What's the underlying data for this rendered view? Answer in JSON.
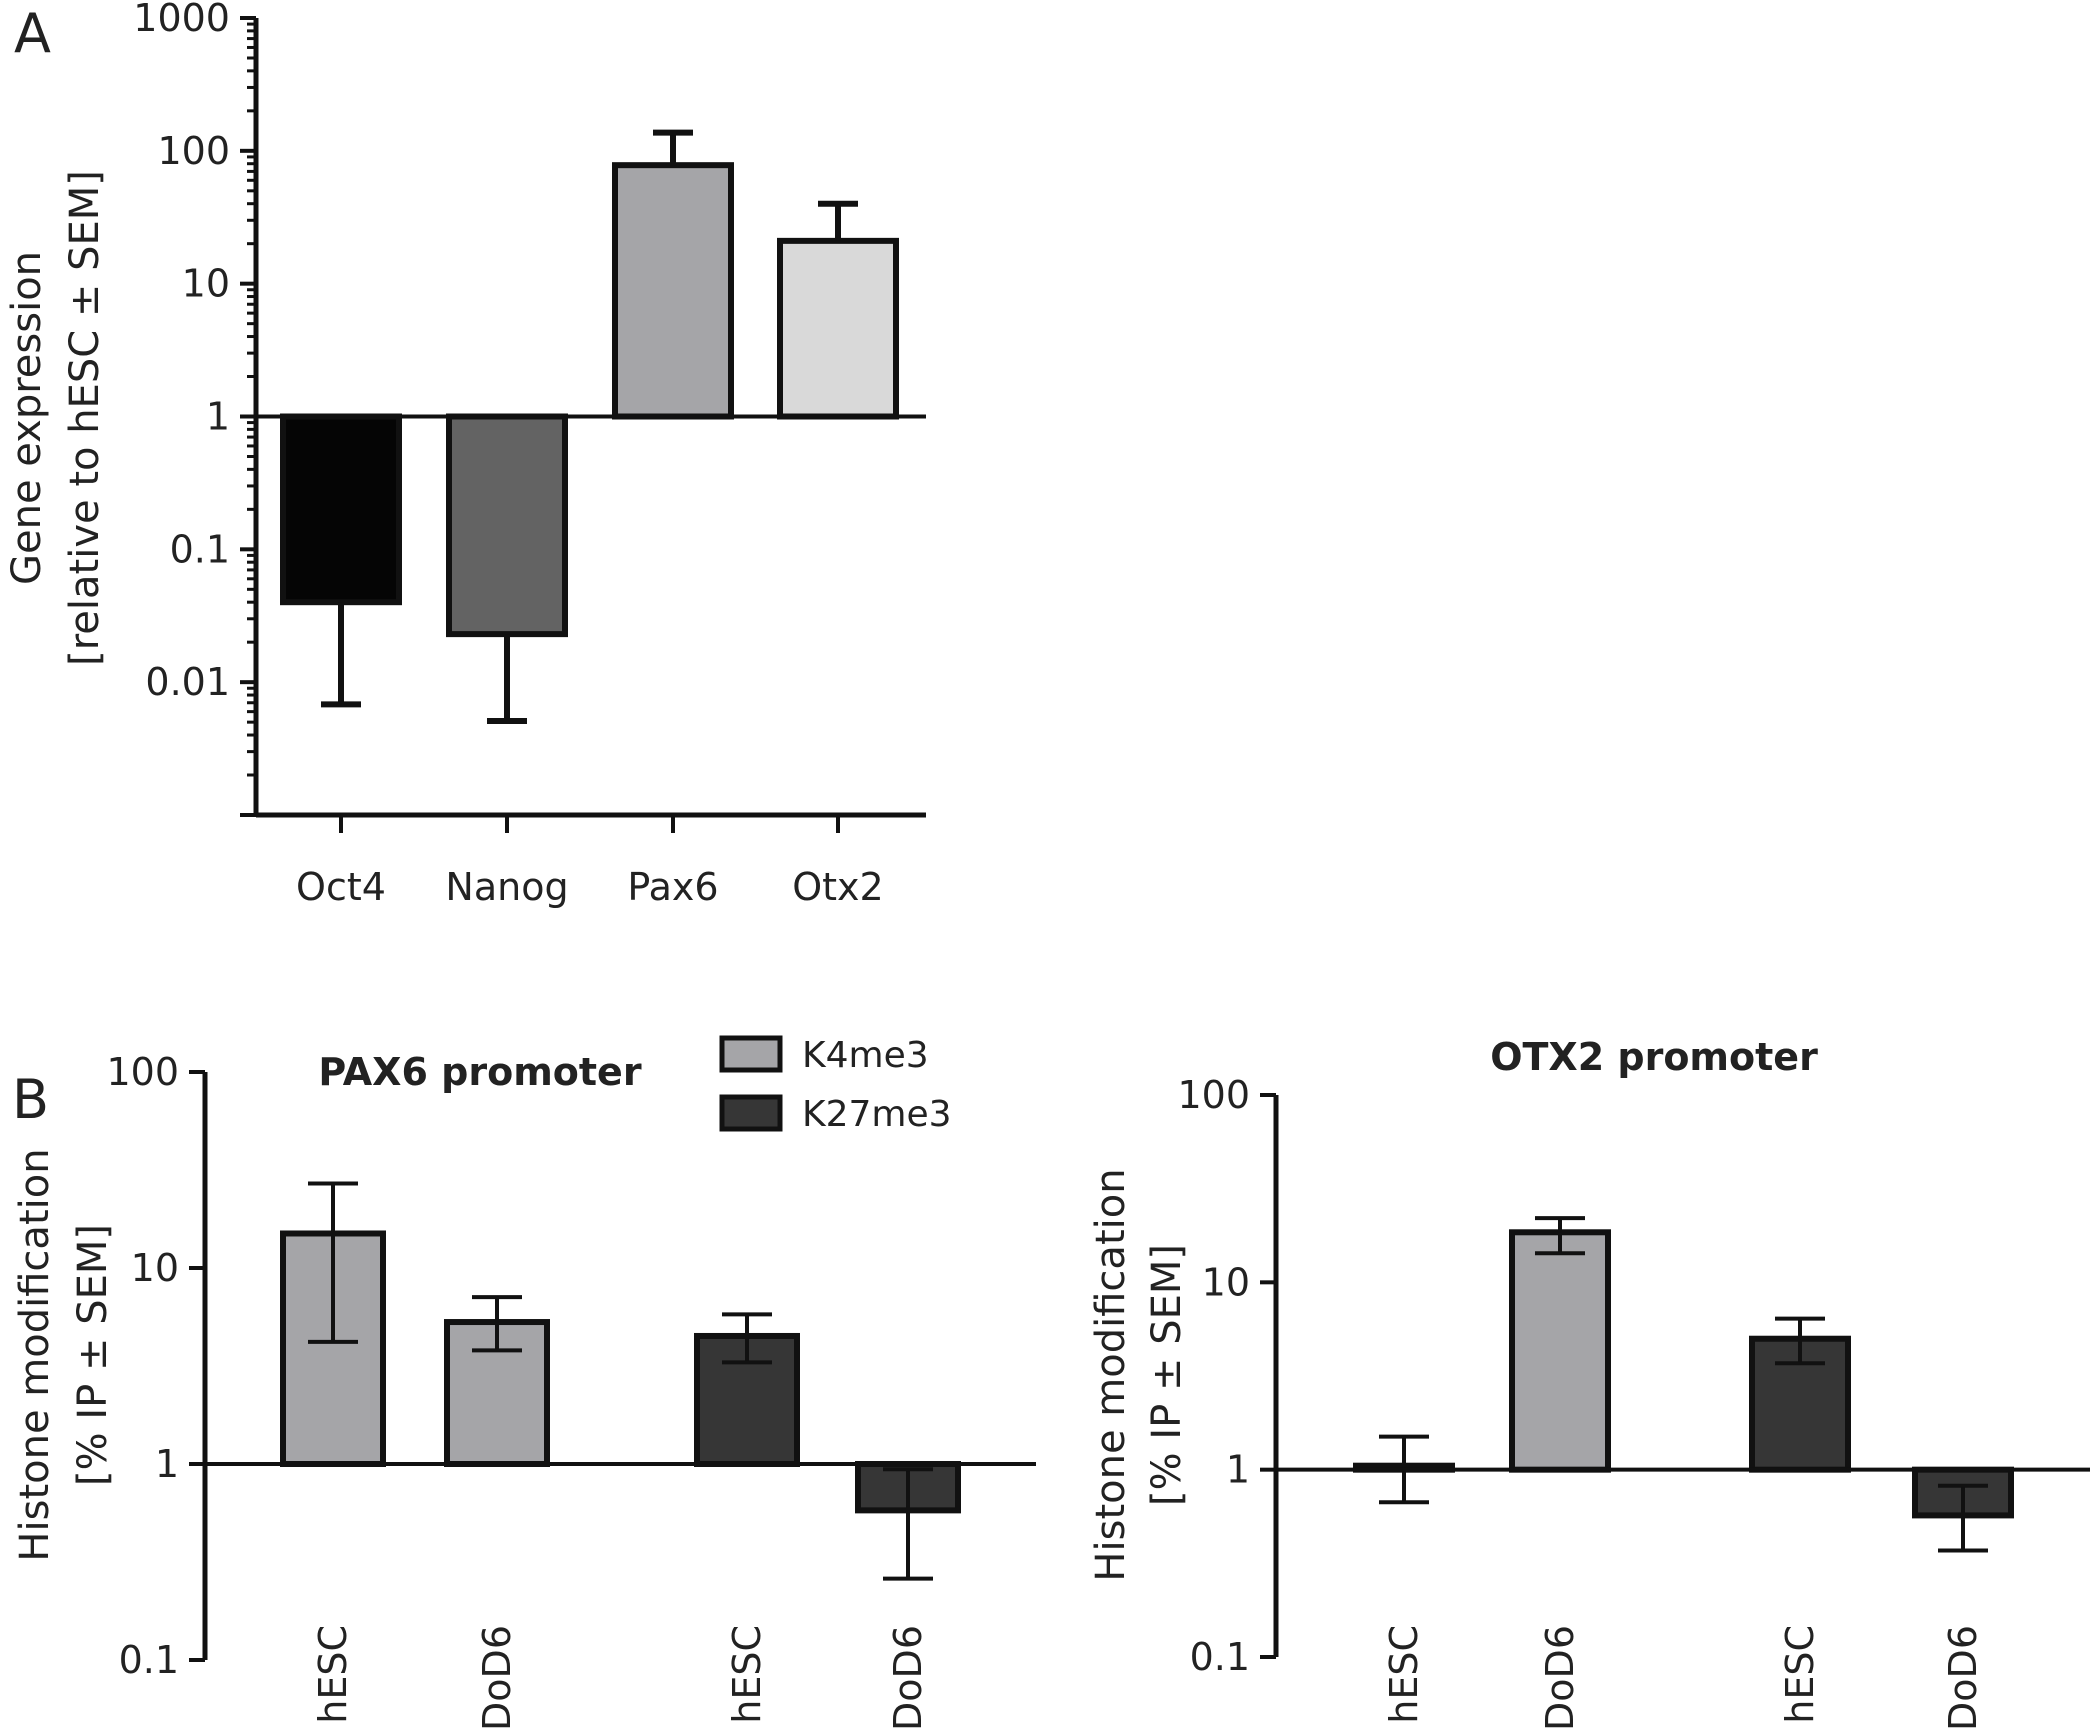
{
  "chart_data": [
    {
      "type": "bar",
      "panel": "A",
      "title": "",
      "xlabel": "",
      "ylabel": "Gene expression",
      "ylabel_sub": "[relative to hESC ± SEM]",
      "yscale": "log",
      "ylim": [
        0.001,
        1000
      ],
      "baseline": 1,
      "yticks": [
        {
          "value": 1000,
          "label": "1000"
        },
        {
          "value": 100,
          "label": "100"
        },
        {
          "value": 10,
          "label": "10"
        },
        {
          "value": 1,
          "label": "1"
        },
        {
          "value": 0.1,
          "label": "0.1"
        },
        {
          "value": 0.01,
          "label": "0.01"
        }
      ],
      "categories": [
        "Oct4",
        "Nanog",
        "Pax6",
        "Otx2"
      ],
      "values": [
        0.04,
        0.023,
        78,
        21
      ],
      "error_end": [
        0.0068,
        0.0051,
        137,
        40
      ],
      "colors": [
        "#050505",
        "#636363",
        "#a5a5a8",
        "#d9d9d9"
      ]
    },
    {
      "type": "bar",
      "panel": "B",
      "title": "PAX6 promoter",
      "xlabel": "",
      "ylabel": "Histone modification",
      "ylabel_sub": "[% IP ± SEM]",
      "yscale": "log",
      "ylim": [
        0.1,
        100
      ],
      "baseline": 1,
      "yticks": [
        {
          "value": 100,
          "label": "100"
        },
        {
          "value": 10,
          "label": "10"
        },
        {
          "value": 1,
          "label": "1"
        },
        {
          "value": 0.1,
          "label": "0.1"
        }
      ],
      "categories": [
        "hESC",
        "DoD6",
        "hESC",
        "DoD6"
      ],
      "series_index": [
        0,
        0,
        1,
        1
      ],
      "values": [
        15,
        5.3,
        4.5,
        0.58
      ],
      "error_low": [
        4.2,
        3.8,
        3.3,
        0.26
      ],
      "error_high": [
        27,
        7.1,
        5.8,
        0.94
      ],
      "legend": {
        "position": "top-center",
        "entries": [
          {
            "name": "K4me3",
            "color": "#a5a5a8"
          },
          {
            "name": "K27me3",
            "color": "#363636"
          }
        ]
      }
    },
    {
      "type": "bar",
      "panel": "",
      "title": "OTX2 promoter",
      "xlabel": "",
      "ylabel": "Histone modification",
      "ylabel_sub": "[% IP ± SEM]",
      "yscale": "log",
      "ylim": [
        0.1,
        100
      ],
      "baseline": 1,
      "yticks": [
        {
          "value": 100,
          "label": "100"
        },
        {
          "value": 10,
          "label": "10"
        },
        {
          "value": 1,
          "label": "1"
        },
        {
          "value": 0.1,
          "label": "0.1"
        }
      ],
      "categories": [
        "hESC",
        "DoD6",
        "hESC",
        "DoD6"
      ],
      "series_index": [
        0,
        0,
        1,
        1
      ],
      "values": [
        1.05,
        18.5,
        5.0,
        0.57
      ],
      "error_low": [
        0.67,
        14.3,
        3.7,
        0.37
      ],
      "error_high": [
        1.5,
        22,
        6.4,
        0.82
      ]
    }
  ],
  "panel_labels": {
    "a": "A",
    "b": "B"
  },
  "series_colors": [
    "#a5a5a8",
    "#363636"
  ],
  "stroke_color": "#111111"
}
